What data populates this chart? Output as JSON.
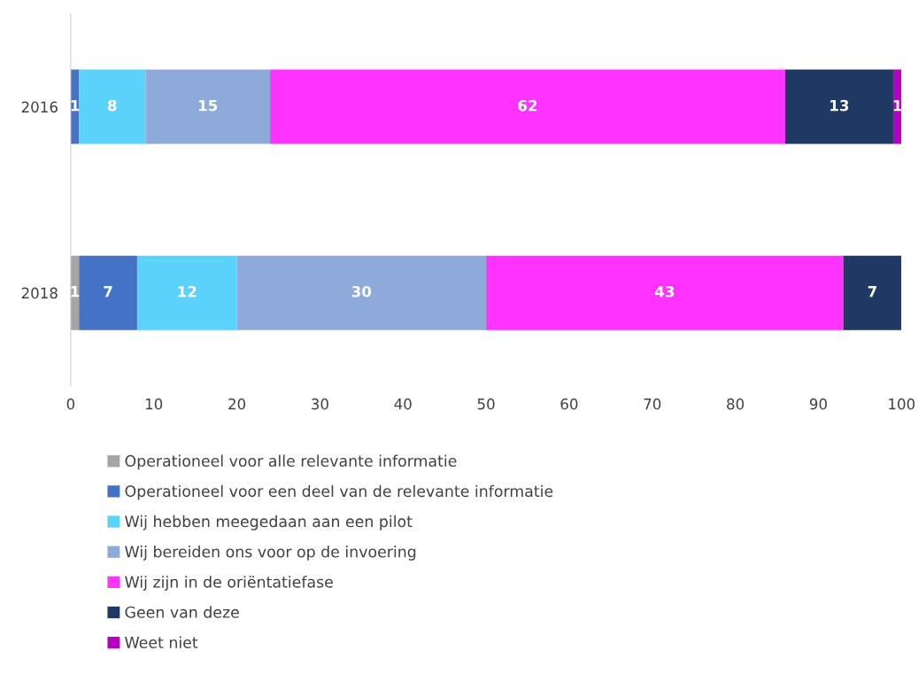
{
  "chart_data": {
    "type": "bar",
    "orientation": "horizontal",
    "stacked": true,
    "categories": [
      "2016",
      "2018"
    ],
    "series": [
      {
        "name": "Operationeel voor alle relevante informatie",
        "color": "#a5a5a5",
        "values": [
          null,
          1
        ]
      },
      {
        "name": "Operationeel voor een deel van de relevante informatie",
        "color": "#4472c4",
        "values": [
          1,
          7
        ]
      },
      {
        "name": "Wij hebben meegedaan aan een pilot",
        "color": "#5ad2fa",
        "values": [
          8,
          12
        ]
      },
      {
        "name": "Wij bereiden ons voor op de invoering",
        "color": "#8eaadb",
        "values": [
          15,
          30
        ]
      },
      {
        "name": "Wij zijn in de oriëntatiefase",
        "color": "#ff33ff",
        "values": [
          62,
          43
        ]
      },
      {
        "name": "Geen van deze",
        "color": "#203864",
        "values": [
          13,
          7
        ]
      },
      {
        "name": "Weet niet",
        "color": "#b400c0",
        "values": [
          1,
          null
        ]
      }
    ],
    "xlim": [
      0,
      100
    ],
    "xticks": [
      0,
      10,
      20,
      30,
      40,
      50,
      60,
      70,
      80,
      90,
      100
    ],
    "data_labels": true,
    "grid": false,
    "legend": "bottom"
  }
}
